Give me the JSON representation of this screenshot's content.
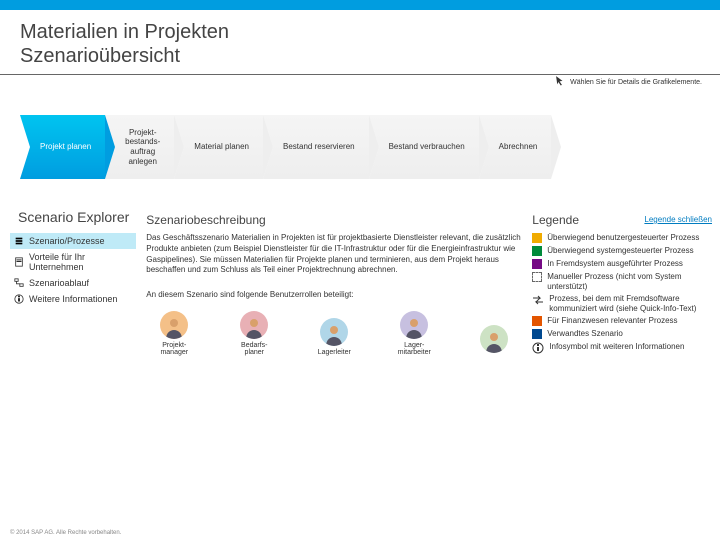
{
  "colors": {
    "brand": "#009de0",
    "text": "#333333",
    "muted": "#888888",
    "link": "#007cc0",
    "legend_user": "#f0ab00",
    "legend_sys": "#008a3b",
    "legend_ext": "#760a85",
    "legend_fin": "#e35500",
    "legend_rel": "#004990"
  },
  "header": {
    "line1": "Materialien in Projekten",
    "line2": "Szenarioübersicht"
  },
  "hint": "Wählen Sie für Details die Grafikelemente.",
  "flow": {
    "steps": [
      {
        "label": "Projekt planen",
        "active": true
      },
      {
        "label": "Projekt-\nbestands-\nauftrag\nanlegen",
        "active": false
      },
      {
        "label": "Material planen",
        "active": false
      },
      {
        "label": "Bestand reservieren",
        "active": false
      },
      {
        "label": "Bestand verbrauchen",
        "active": false
      },
      {
        "label": "Abrechnen",
        "active": false
      }
    ]
  },
  "explorer": {
    "title": "Scenario Explorer",
    "items": [
      {
        "label": "Szenario/Prozesse",
        "icon": "list",
        "active": true
      },
      {
        "label": "Vorteile für Ihr Unternehmen",
        "icon": "doc",
        "active": false
      },
      {
        "label": "Szenarioablauf",
        "icon": "flow",
        "active": false
      },
      {
        "label": "Weitere Informationen",
        "icon": "info",
        "active": false
      }
    ]
  },
  "description": {
    "heading": "Szenariobeschreibung",
    "body": "Das Geschäftsszenario Materialien in Projekten ist für projektbasierte Dienstleister relevant, die zusätzlich Produkte anbieten (zum Beispiel Dienstleister für die IT-Infrastruktur oder für die Energieinfrastruktur wie Gaspipelines). Sie müssen Materialien für Projekte planen und terminieren, aus dem Projekt heraus beschaffen und zum Schluss als Teil einer Projektrechnung abrechnen.",
    "roles_intro": "An diesem Szenario sind folgende Benutzerrollen beteiligt:",
    "roles": [
      {
        "label": "Projekt-\nmanager",
        "bg": "#f4c088"
      },
      {
        "label": "Bedarfs-\nplaner",
        "bg": "#e8b0b5"
      },
      {
        "label": "Lagerleiter",
        "bg": "#b0d6e8"
      },
      {
        "label": "Lager-\nmitarbeiter",
        "bg": "#c7c0e0"
      },
      {
        "label": "",
        "bg": "#cde2c4"
      }
    ]
  },
  "legend": {
    "heading": "Legende",
    "close": "Legende schließen",
    "rows": [
      {
        "type": "sw",
        "color": "#f0ab00",
        "label": "Überwiegend benutzergesteuerter Prozess"
      },
      {
        "type": "sw",
        "color": "#008a3b",
        "label": "Überwiegend systemgesteuerter Prozess"
      },
      {
        "type": "sw",
        "color": "#760a85",
        "label": "In Fremdsystem ausgeführter Prozess"
      },
      {
        "type": "dashed",
        "label": "Manueller Prozess (nicht vom System unterstützt)"
      },
      {
        "type": "icon",
        "icon": "arrows",
        "label": "Prozess, bei dem mit Fremdsoftware kommuniziert wird (siehe Quick-Info-Text)"
      },
      {
        "type": "sw",
        "color": "#e35500",
        "label": "Für Finanzwesen relevanter Prozess"
      },
      {
        "type": "sw",
        "color": "#004990",
        "label": "Verwandtes Szenario"
      },
      {
        "type": "icon",
        "icon": "info",
        "label": "Infosymbol mit weiteren Informationen"
      }
    ]
  },
  "footer": "© 2014 SAP AG. Alle Rechte vorbehalten."
}
